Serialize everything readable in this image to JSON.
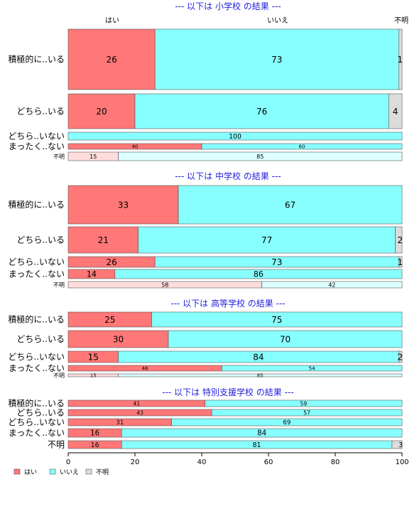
{
  "colors": {
    "yes": "#ff7777",
    "no": "#88ffff",
    "unknown": "#dcdcdc",
    "yes_light": "#ffdddd",
    "no_light": "#ddffff",
    "title": "#1f1fdd"
  },
  "chart_data": {
    "type": "bar",
    "stacked": true,
    "orientation": "horizontal",
    "categories_header": [
      "はい",
      "いいえ",
      "不明"
    ],
    "xlim": [
      0,
      100
    ],
    "xticks": [
      0,
      20,
      40,
      60,
      80,
      100
    ],
    "legend": {
      "position": "bottom-left",
      "items": [
        {
          "label": "はい",
          "color": "#ff7777"
        },
        {
          "label": "いいえ",
          "color": "#88ffff"
        },
        {
          "label": "不明",
          "color": "#dcdcdc"
        }
      ]
    },
    "panels": [
      {
        "title": "--- 以下は 小学校 の結果 ---",
        "rows": [
          {
            "label": "積極的に..いる",
            "values": [
              26,
              73,
              1
            ]
          },
          {
            "label": "どちら..いる",
            "values": [
              20,
              76,
              4
            ]
          },
          {
            "label": "どちら..いない",
            "values": [
              0,
              100,
              0
            ]
          },
          {
            "label": "まったく..ない",
            "values": [
              40,
              60,
              0
            ]
          },
          {
            "label": "不明",
            "values": [
              15,
              85,
              0
            ]
          }
        ]
      },
      {
        "title": "--- 以下は 中学校 の結果 ---",
        "rows": [
          {
            "label": "積極的に..いる",
            "values": [
              33,
              67,
              0
            ]
          },
          {
            "label": "どちら..いる",
            "values": [
              21,
              77,
              2
            ]
          },
          {
            "label": "どちら..いない",
            "values": [
              26,
              73,
              1
            ]
          },
          {
            "label": "まったく..ない",
            "values": [
              14,
              86,
              0
            ]
          },
          {
            "label": "不明",
            "values": [
              58,
              42,
              0
            ]
          }
        ]
      },
      {
        "title": "--- 以下は 高等学校 の結果 ---",
        "rows": [
          {
            "label": "積極的に..いる",
            "values": [
              25,
              75,
              0
            ]
          },
          {
            "label": "どちら..いる",
            "values": [
              30,
              70,
              0
            ]
          },
          {
            "label": "どちら..いない",
            "values": [
              15,
              84,
              2
            ]
          },
          {
            "label": "まったく..ない",
            "values": [
              46,
              54,
              0
            ]
          },
          {
            "label": "不明",
            "values": [
              15,
              85,
              0
            ]
          }
        ]
      },
      {
        "title": "--- 以下は 特別支援学校 の結果 ---",
        "rows": [
          {
            "label": "積極的に..いる",
            "values": [
              41,
              59,
              0
            ]
          },
          {
            "label": "どちら..いる",
            "values": [
              43,
              57,
              0
            ]
          },
          {
            "label": "どちら..いない",
            "values": [
              31,
              69,
              0
            ]
          },
          {
            "label": "まったく..ない",
            "values": [
              16,
              84,
              0
            ]
          },
          {
            "label": "不明",
            "values": [
              16,
              81,
              3
            ]
          }
        ]
      }
    ]
  }
}
